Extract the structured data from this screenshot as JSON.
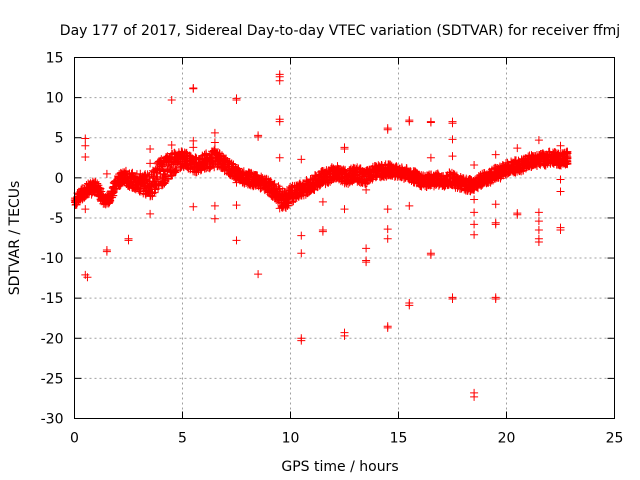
{
  "chart_data": {
    "type": "scatter",
    "title": "Day 177 of 2017, Sidereal Day-to-day VTEC variation (SDTVAR) for receiver ffmj",
    "xlabel": "GPS time / hours",
    "ylabel": "SDTVAR / TECUs",
    "xlim": [
      0,
      25
    ],
    "ylim": [
      -30,
      15
    ],
    "xticks": [
      "0",
      "5",
      "10",
      "15",
      "20",
      "25"
    ],
    "yticks": [
      "15",
      "10",
      "5",
      "0",
      "-5",
      "-10",
      "-15",
      "-20",
      "-25",
      "-30"
    ],
    "grid": true,
    "marker": "plus",
    "color": "#ff0000",
    "band": [
      [
        0.0,
        -3.0,
        0.6
      ],
      [
        0.2,
        -2.4,
        0.7
      ],
      [
        0.4,
        -1.9,
        0.7
      ],
      [
        0.6,
        -1.4,
        0.7
      ],
      [
        0.8,
        -1.3,
        0.8
      ],
      [
        1.0,
        -1.0,
        0.7
      ],
      [
        1.2,
        -2.0,
        0.8
      ],
      [
        1.4,
        -2.9,
        0.5
      ],
      [
        1.6,
        -2.6,
        0.6
      ],
      [
        1.8,
        -1.5,
        0.8
      ],
      [
        2.0,
        -0.5,
        0.8
      ],
      [
        2.2,
        0.0,
        0.8
      ],
      [
        2.4,
        0.0,
        0.9
      ],
      [
        2.6,
        -0.2,
        1.0
      ],
      [
        2.8,
        -0.4,
        1.1
      ],
      [
        3.0,
        -0.6,
        1.2
      ],
      [
        3.2,
        -0.8,
        1.3
      ],
      [
        3.4,
        -0.9,
        1.4
      ],
      [
        3.6,
        -0.8,
        1.6
      ],
      [
        3.8,
        0.2,
        1.7
      ],
      [
        4.0,
        0.6,
        1.8
      ],
      [
        4.2,
        1.0,
        1.7
      ],
      [
        4.4,
        1.3,
        1.6
      ],
      [
        4.6,
        1.8,
        1.5
      ],
      [
        4.8,
        2.2,
        1.2
      ],
      [
        5.0,
        2.3,
        1.0
      ],
      [
        5.2,
        2.2,
        0.9
      ],
      [
        5.4,
        1.8,
        0.9
      ],
      [
        5.6,
        1.6,
        1.0
      ],
      [
        5.8,
        1.8,
        1.0
      ],
      [
        6.0,
        2.0,
        1.0
      ],
      [
        6.2,
        2.2,
        1.1
      ],
      [
        6.4,
        2.4,
        1.1
      ],
      [
        6.6,
        2.3,
        1.0
      ],
      [
        6.8,
        2.0,
        0.9
      ],
      [
        7.0,
        1.6,
        0.9
      ],
      [
        7.2,
        1.2,
        0.9
      ],
      [
        7.4,
        0.8,
        0.9
      ],
      [
        7.6,
        0.4,
        0.8
      ],
      [
        7.8,
        0.1,
        0.8
      ],
      [
        8.0,
        0.0,
        0.8
      ],
      [
        8.2,
        -0.2,
        0.8
      ],
      [
        8.4,
        -0.4,
        0.8
      ],
      [
        8.6,
        -0.5,
        0.8
      ],
      [
        8.8,
        -0.8,
        0.8
      ],
      [
        9.0,
        -1.2,
        0.9
      ],
      [
        9.2,
        -1.6,
        1.0
      ],
      [
        9.4,
        -2.0,
        1.1
      ],
      [
        9.6,
        -2.6,
        1.2
      ],
      [
        9.8,
        -2.6,
        1.2
      ],
      [
        10.0,
        -2.2,
        1.1
      ],
      [
        10.2,
        -1.8,
        1.0
      ],
      [
        10.4,
        -1.6,
        0.9
      ],
      [
        10.6,
        -1.4,
        0.9
      ],
      [
        10.8,
        -1.0,
        0.9
      ],
      [
        11.0,
        -0.8,
        0.9
      ],
      [
        11.2,
        -0.4,
        0.9
      ],
      [
        11.4,
        0.0,
        0.9
      ],
      [
        11.6,
        0.0,
        0.9
      ],
      [
        11.8,
        0.2,
        0.9
      ],
      [
        12.0,
        0.6,
        0.9
      ],
      [
        12.2,
        0.6,
        0.9
      ],
      [
        12.4,
        0.3,
        0.9
      ],
      [
        12.6,
        0.0,
        0.9
      ],
      [
        12.8,
        0.3,
        0.9
      ],
      [
        13.0,
        0.5,
        0.9
      ],
      [
        13.2,
        0.3,
        0.9
      ],
      [
        13.4,
        0.0,
        0.9
      ],
      [
        13.6,
        0.2,
        0.8
      ],
      [
        13.8,
        0.6,
        0.8
      ],
      [
        14.0,
        0.8,
        0.8
      ],
      [
        14.2,
        0.8,
        0.8
      ],
      [
        14.4,
        0.9,
        0.8
      ],
      [
        14.6,
        1.0,
        0.7
      ],
      [
        14.8,
        0.8,
        0.7
      ],
      [
        15.0,
        0.7,
        0.7
      ],
      [
        15.2,
        0.6,
        0.7
      ],
      [
        15.4,
        0.5,
        0.7
      ],
      [
        15.6,
        0.3,
        0.7
      ],
      [
        15.8,
        0.0,
        0.8
      ],
      [
        16.0,
        -0.3,
        0.8
      ],
      [
        16.2,
        -0.4,
        0.8
      ],
      [
        16.4,
        -0.3,
        0.8
      ],
      [
        16.6,
        -0.3,
        0.8
      ],
      [
        16.8,
        -0.2,
        0.8
      ],
      [
        17.0,
        -0.4,
        0.8
      ],
      [
        17.2,
        -0.3,
        0.8
      ],
      [
        17.4,
        0.0,
        0.8
      ],
      [
        17.6,
        -0.4,
        0.8
      ],
      [
        17.8,
        -0.6,
        0.8
      ],
      [
        18.0,
        -0.8,
        0.8
      ],
      [
        18.2,
        -0.9,
        0.8
      ],
      [
        18.4,
        -0.9,
        0.8
      ],
      [
        18.6,
        -0.6,
        0.8
      ],
      [
        18.8,
        -0.4,
        0.8
      ],
      [
        19.0,
        0.0,
        0.8
      ],
      [
        19.2,
        0.0,
        0.8
      ],
      [
        19.4,
        0.5,
        0.8
      ],
      [
        19.6,
        0.5,
        0.8
      ],
      [
        19.8,
        0.8,
        0.8
      ],
      [
        20.0,
        1.2,
        0.8
      ],
      [
        20.2,
        1.3,
        0.8
      ],
      [
        20.4,
        1.4,
        0.8
      ],
      [
        20.6,
        1.5,
        0.8
      ],
      [
        20.8,
        1.7,
        0.8
      ],
      [
        21.0,
        2.0,
        0.8
      ],
      [
        21.2,
        2.1,
        0.8
      ],
      [
        21.4,
        2.2,
        0.8
      ],
      [
        21.6,
        2.3,
        0.8
      ],
      [
        21.8,
        2.3,
        0.8
      ],
      [
        22.0,
        2.5,
        0.8
      ],
      [
        22.2,
        2.5,
        0.8
      ],
      [
        22.4,
        2.3,
        0.8
      ],
      [
        22.6,
        2.3,
        0.8
      ],
      [
        22.8,
        2.5,
        0.8
      ]
    ],
    "outliers": [
      [
        0.5,
        4.9
      ],
      [
        0.5,
        4.0
      ],
      [
        0.5,
        2.6
      ],
      [
        0.5,
        -3.9
      ],
      [
        0.5,
        -12.1
      ],
      [
        0.6,
        -12.4
      ],
      [
        1.5,
        -9.0
      ],
      [
        1.5,
        -9.2
      ],
      [
        1.5,
        0.5
      ],
      [
        2.5,
        -7.6
      ],
      [
        2.5,
        -7.8
      ],
      [
        3.5,
        3.6
      ],
      [
        3.5,
        1.8
      ],
      [
        3.5,
        -4.5
      ],
      [
        4.5,
        9.7
      ],
      [
        4.5,
        4.1
      ],
      [
        4.5,
        2.5
      ],
      [
        5.5,
        11.2
      ],
      [
        5.5,
        11.1
      ],
      [
        5.5,
        4.6
      ],
      [
        5.5,
        3.8
      ],
      [
        5.5,
        -3.6
      ],
      [
        6.5,
        5.6
      ],
      [
        6.5,
        4.4
      ],
      [
        6.5,
        3.6
      ],
      [
        6.5,
        -3.5
      ],
      [
        6.5,
        -5.1
      ],
      [
        7.5,
        9.9
      ],
      [
        7.5,
        9.7
      ],
      [
        7.5,
        -3.4
      ],
      [
        7.5,
        -7.8
      ],
      [
        7.5,
        -0.6
      ],
      [
        8.5,
        5.3
      ],
      [
        8.5,
        5.1
      ],
      [
        8.5,
        -12.0
      ],
      [
        9.5,
        12.9
      ],
      [
        9.5,
        12.6
      ],
      [
        9.5,
        12.1
      ],
      [
        9.5,
        7.3
      ],
      [
        9.5,
        7.0
      ],
      [
        9.5,
        2.5
      ],
      [
        9.5,
        -3.8
      ],
      [
        10.5,
        2.3
      ],
      [
        10.5,
        -7.2
      ],
      [
        10.5,
        -9.4
      ],
      [
        10.5,
        -20.0
      ],
      [
        10.5,
        -20.3
      ],
      [
        11.5,
        -3.0
      ],
      [
        11.5,
        -6.5
      ],
      [
        11.5,
        -6.7
      ],
      [
        12.5,
        3.8
      ],
      [
        12.5,
        3.6
      ],
      [
        12.5,
        -3.9
      ],
      [
        12.5,
        -19.3
      ],
      [
        12.5,
        -19.7
      ],
      [
        13.5,
        -8.8
      ],
      [
        13.5,
        -10.3
      ],
      [
        13.5,
        -10.5
      ],
      [
        13.5,
        -1.5
      ],
      [
        14.5,
        6.2
      ],
      [
        14.5,
        6.0
      ],
      [
        14.5,
        -3.9
      ],
      [
        14.5,
        -6.4
      ],
      [
        14.5,
        -7.6
      ],
      [
        14.5,
        -18.5
      ],
      [
        14.5,
        -18.7
      ],
      [
        15.5,
        7.2
      ],
      [
        15.5,
        7.0
      ],
      [
        15.5,
        -3.5
      ],
      [
        15.5,
        -15.6
      ],
      [
        15.5,
        -15.9
      ],
      [
        16.5,
        7.0
      ],
      [
        16.5,
        6.9
      ],
      [
        16.5,
        2.5
      ],
      [
        16.5,
        -9.4
      ],
      [
        16.5,
        -9.6
      ],
      [
        17.5,
        7.0
      ],
      [
        17.5,
        6.8
      ],
      [
        17.5,
        4.8
      ],
      [
        17.5,
        2.7
      ],
      [
        17.5,
        -14.9
      ],
      [
        17.5,
        -15.1
      ],
      [
        18.5,
        1.6
      ],
      [
        18.5,
        -2.7
      ],
      [
        18.5,
        -4.3
      ],
      [
        18.5,
        -5.8
      ],
      [
        18.5,
        -7.1
      ],
      [
        18.5,
        -26.8
      ],
      [
        18.5,
        -27.3
      ],
      [
        19.5,
        2.9
      ],
      [
        19.5,
        -3.3
      ],
      [
        19.5,
        -5.6
      ],
      [
        19.5,
        -5.8
      ],
      [
        19.5,
        -14.9
      ],
      [
        19.5,
        -15.1
      ],
      [
        20.5,
        3.7
      ],
      [
        20.5,
        -4.4
      ],
      [
        20.5,
        -4.6
      ],
      [
        21.5,
        4.7
      ],
      [
        21.5,
        -4.3
      ],
      [
        21.5,
        -5.4
      ],
      [
        21.5,
        -6.5
      ],
      [
        21.5,
        -7.6
      ],
      [
        21.5,
        -8.0
      ],
      [
        22.5,
        4.0
      ],
      [
        22.5,
        -0.2
      ],
      [
        22.5,
        -1.7
      ],
      [
        22.5,
        -6.2
      ],
      [
        22.5,
        -6.5
      ]
    ]
  }
}
